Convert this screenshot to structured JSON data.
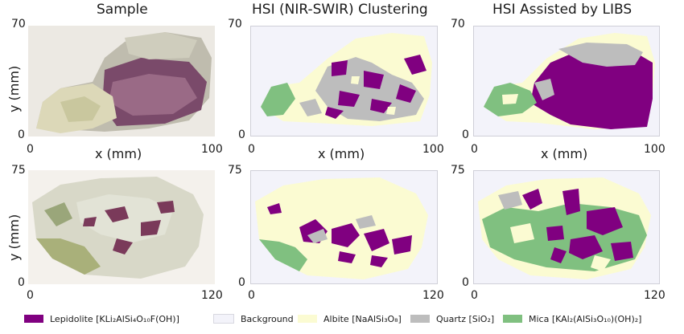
{
  "titles": {
    "sample": "Sample",
    "hsi": "HSI (NIR-SWIR) Clustering",
    "libs": "HSI Assisted by LIBS"
  },
  "axes": {
    "xlabel": "x (mm)",
    "ylabel": "y (mm)",
    "row1": {
      "x0": "0",
      "xmax": "100",
      "y0": "0",
      "ymax": "70"
    },
    "row2": {
      "x0": "0",
      "xmax": "120",
      "y0": "0",
      "ymax": "75"
    }
  },
  "legend": [
    {
      "name": "Lepidolite [KLi₂AlSi₄O₁₀F(OH)]",
      "color": "#800080"
    },
    {
      "name": "Background",
      "color": "#f3f3fa"
    },
    {
      "name": "Albite [NaAlSi₃O₈]",
      "color": "#fbfbd2"
    },
    {
      "name": "Quartz [SiO₂]",
      "color": "#bdbdbd"
    },
    {
      "name": "Mica [KAl₂(AlSi₃O₁₀)(OH)₂]",
      "color": "#80c080"
    }
  ]
}
